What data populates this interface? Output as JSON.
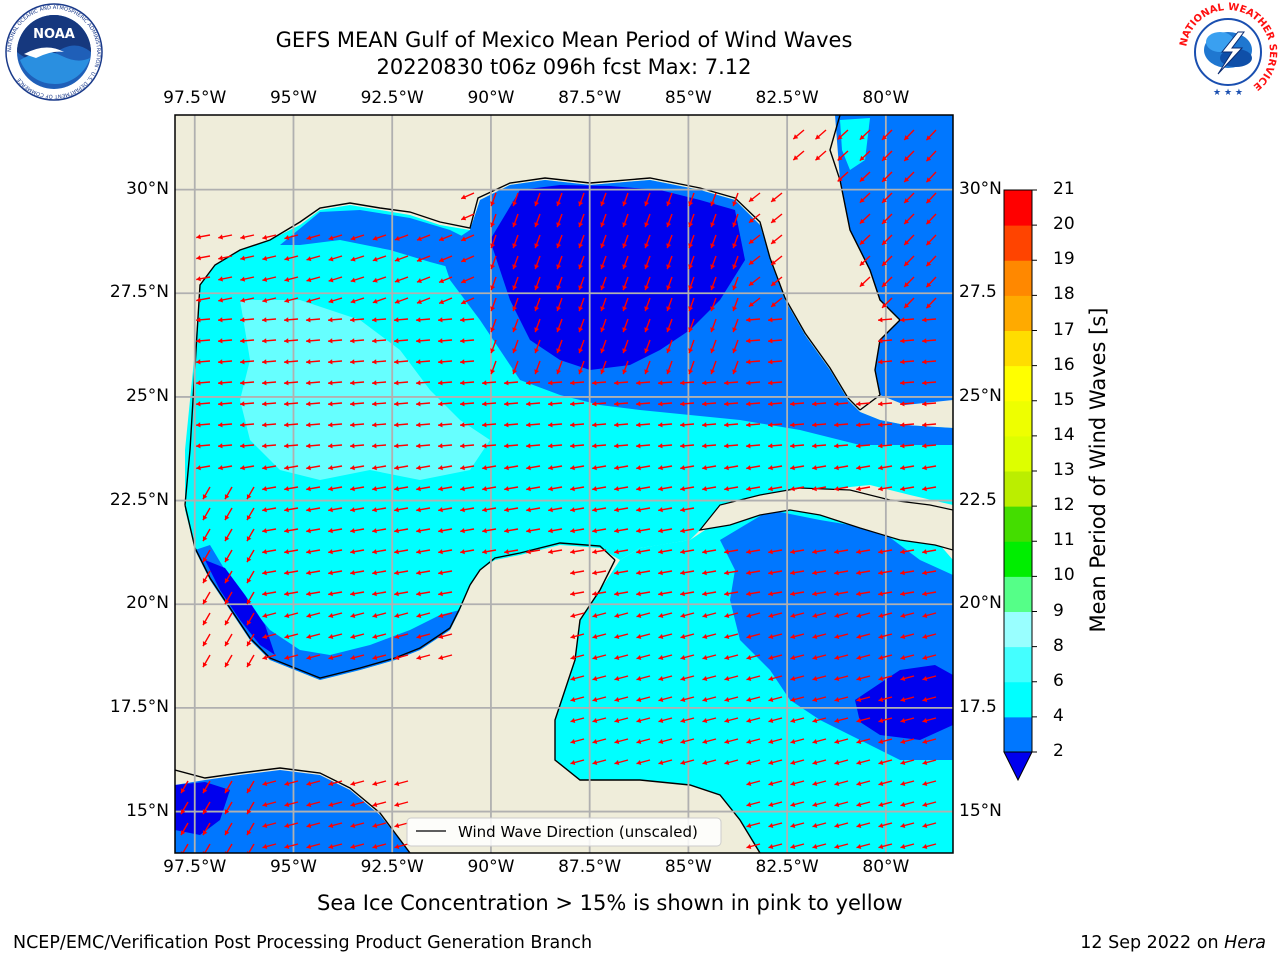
{
  "title": {
    "line1": "GEFS MEAN Gulf of Mexico Mean Period of Wind Waves",
    "line2": "20220830 t06z 096h fcst   Max: 7.12"
  },
  "axes": {
    "lon_labels": [
      "97.5°W",
      "95°W",
      "92.5°W",
      "90°W",
      "87.5°W",
      "85°W",
      "82.5°W",
      "80°W"
    ],
    "lat_labels_left": [
      "30°N",
      "27.5°N",
      "25°N",
      "22.5°N",
      "20°N",
      "17.5°N",
      "15°N"
    ],
    "lat_labels_right": [
      "30°N",
      "27.5",
      "25°N",
      "22.5",
      "20°N",
      "17.5",
      "15°N"
    ]
  },
  "colorbar": {
    "label": "Mean Period of Wind Waves [s]",
    "ticks": [
      "21",
      "20",
      "19",
      "18",
      "17",
      "16",
      "15",
      "14",
      "13",
      "12",
      "11",
      "10",
      "9",
      "8",
      "6",
      "4",
      "2"
    ],
    "levels": [
      2,
      4,
      6,
      8,
      9,
      10,
      11,
      12,
      13,
      14,
      15,
      16,
      17,
      18,
      19,
      20,
      21
    ],
    "colors": [
      "#0077ff",
      "#00ffff",
      "#44ffff",
      "#99ffff",
      "#55ff88",
      "#00ee00",
      "#44dd00",
      "#bbee00",
      "#ddff00",
      "#eeff00",
      "#ffff00",
      "#ffdd00",
      "#ffaa00",
      "#ff8800",
      "#ff4400",
      "#ff0000"
    ],
    "extend_color": "#0000ee"
  },
  "legend": {
    "label": "Wind Wave Direction (unscaled)"
  },
  "note": "Sea Ice Concentration > 15% is shown in pink to yellow",
  "footer": {
    "left": "NCEP/EMC/Verification Post Processing Product Generation Branch",
    "date": "12 Sep 2022 on",
    "host": "Hera"
  },
  "logos": {
    "noaa_text": "NOAA",
    "noaa_ring_text": "NATIONAL OCEANIC AND ATMOSPHERIC ADMINISTRATION · U.S. DEPARTMENT OF COMMERCE",
    "nws_ring_text": "NATIONAL WEATHER SERVICE"
  },
  "map": {
    "lon_range": [
      -98.0,
      -78.3
    ],
    "lat_range": [
      14.0,
      31.8
    ],
    "grid_lons": [
      -97.5,
      -95,
      -92.5,
      -90,
      -87.5,
      -85,
      -82.5,
      -80
    ],
    "grid_lats": [
      30,
      27.5,
      25,
      22.5,
      20,
      17.5,
      15
    ],
    "land_color": "#efedda",
    "arrow_color": "#ff0000",
    "grid_color": "#b0b0b0"
  }
}
